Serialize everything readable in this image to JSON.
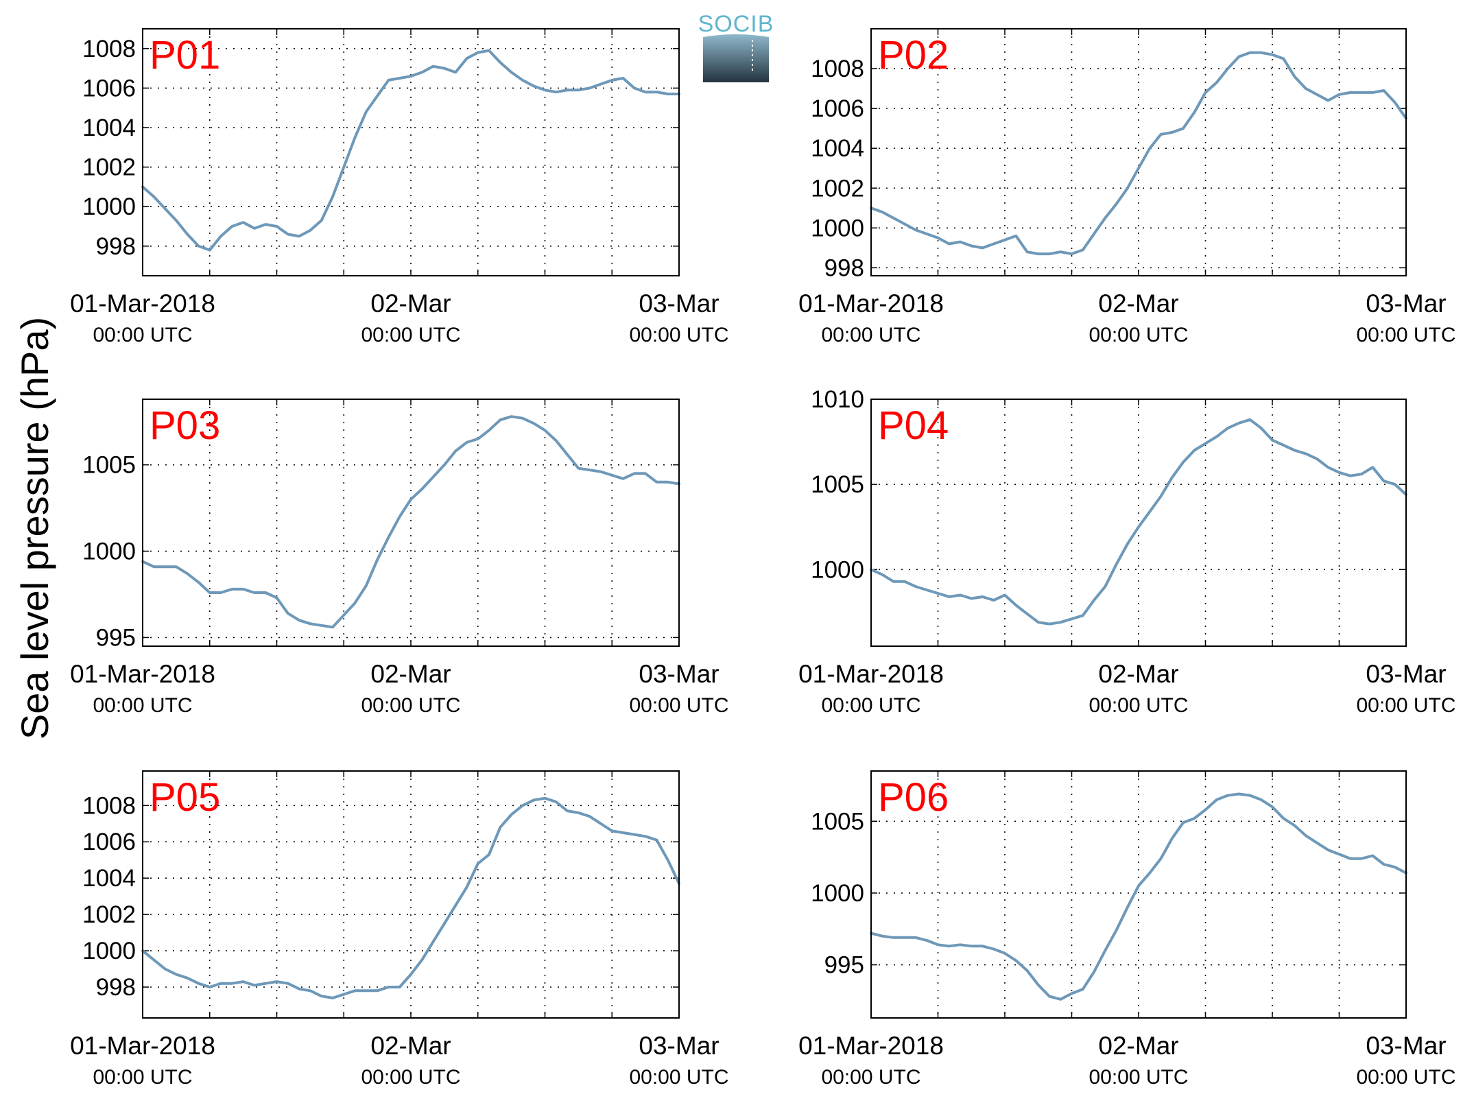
{
  "figure": {
    "ylabel": "Sea level pressure (hPa)",
    "logo_text": "SOCIB",
    "line_color": "#6e98b8",
    "label_color": "#ff0000"
  },
  "chart_data": [
    {
      "type": "line",
      "title": "P01",
      "ylabel": "Sea level pressure (hPa)",
      "xlim": [
        0,
        48
      ],
      "ylim": [
        996.5,
        1009
      ],
      "yticks": [
        998,
        1000,
        1002,
        1004,
        1006,
        1008
      ],
      "xticks": [
        {
          "x": 0,
          "date": "01-Mar-2018",
          "time": "00:00 UTC"
        },
        {
          "x": 24,
          "date": "02-Mar",
          "time": "00:00 UTC"
        },
        {
          "x": 48,
          "date": "03-Mar",
          "time": "00:00 UTC"
        }
      ],
      "grid": true,
      "x_unit": "hours since 01-Mar-2018 00:00 UTC",
      "series": [
        {
          "x": [
            0,
            1,
            2,
            3,
            4,
            5,
            6,
            7,
            8,
            9,
            10,
            11,
            12,
            13,
            14,
            15,
            16,
            17,
            18,
            19,
            20,
            21,
            22,
            23,
            24,
            25,
            26,
            27,
            28,
            29,
            30,
            31,
            32,
            33,
            34,
            35,
            36,
            37,
            38,
            39,
            40,
            41,
            42,
            43,
            44,
            45,
            46,
            47,
            48
          ],
          "y": [
            1001.0,
            1000.5,
            999.9,
            999.3,
            998.6,
            998.0,
            997.8,
            998.5,
            999.0,
            999.2,
            998.9,
            999.1,
            999.0,
            998.6,
            998.5,
            998.8,
            999.3,
            1000.5,
            1002.0,
            1003.5,
            1004.8,
            1005.6,
            1006.4,
            1006.5,
            1006.6,
            1006.8,
            1007.1,
            1007.0,
            1006.8,
            1007.5,
            1007.8,
            1007.9,
            1007.3,
            1006.8,
            1006.4,
            1006.1,
            1005.9,
            1005.8,
            1005.9,
            1005.9,
            1006.0,
            1006.2,
            1006.4,
            1006.5,
            1006.0,
            1005.8,
            1005.8,
            1005.7,
            1005.7
          ]
        }
      ]
    },
    {
      "type": "line",
      "title": "P02",
      "ylabel": "Sea level pressure (hPa)",
      "xlim": [
        0,
        48
      ],
      "ylim": [
        997.6,
        1010
      ],
      "yticks": [
        998,
        1000,
        1002,
        1004,
        1006,
        1008
      ],
      "xticks": [
        {
          "x": 0,
          "date": "01-Mar-2018",
          "time": "00:00 UTC"
        },
        {
          "x": 24,
          "date": "02-Mar",
          "time": "00:00 UTC"
        },
        {
          "x": 48,
          "date": "03-Mar",
          "time": "00:00 UTC"
        }
      ],
      "grid": true,
      "x_unit": "hours since 01-Mar-2018 00:00 UTC",
      "series": [
        {
          "x": [
            0,
            1,
            2,
            3,
            4,
            5,
            6,
            7,
            8,
            9,
            10,
            11,
            12,
            13,
            14,
            15,
            16,
            17,
            18,
            19,
            20,
            21,
            22,
            23,
            24,
            25,
            26,
            27,
            28,
            29,
            30,
            31,
            32,
            33,
            34,
            35,
            36,
            37,
            38,
            39,
            40,
            41,
            42,
            43,
            44,
            45,
            46,
            47,
            48
          ],
          "y": [
            1001.0,
            1000.8,
            1000.5,
            1000.2,
            999.9,
            999.7,
            999.5,
            999.2,
            999.3,
            999.1,
            999.0,
            999.2,
            999.4,
            999.6,
            998.8,
            998.7,
            998.7,
            998.8,
            998.7,
            998.9,
            999.7,
            1000.5,
            1001.2,
            1002.0,
            1003.0,
            1004.0,
            1004.7,
            1004.8,
            1005.0,
            1005.8,
            1006.8,
            1007.3,
            1008.0,
            1008.6,
            1008.8,
            1008.8,
            1008.7,
            1008.5,
            1007.6,
            1007.0,
            1006.7,
            1006.4,
            1006.7,
            1006.8,
            1006.8,
            1006.8,
            1006.9,
            1006.3,
            1005.5
          ]
        }
      ]
    },
    {
      "type": "line",
      "title": "P03",
      "ylabel": "Sea level pressure (hPa)",
      "xlim": [
        0,
        48
      ],
      "ylim": [
        994.5,
        1008.8
      ],
      "yticks": [
        995,
        1000,
        1005
      ],
      "xticks": [
        {
          "x": 0,
          "date": "01-Mar-2018",
          "time": "00:00 UTC"
        },
        {
          "x": 24,
          "date": "02-Mar",
          "time": "00:00 UTC"
        },
        {
          "x": 48,
          "date": "03-Mar",
          "time": "00:00 UTC"
        }
      ],
      "grid": true,
      "x_unit": "hours since 01-Mar-2018 00:00 UTC",
      "series": [
        {
          "x": [
            0,
            1,
            2,
            3,
            4,
            5,
            6,
            7,
            8,
            9,
            10,
            11,
            12,
            13,
            14,
            15,
            16,
            17,
            18,
            19,
            20,
            21,
            22,
            23,
            24,
            25,
            26,
            27,
            28,
            29,
            30,
            31,
            32,
            33,
            34,
            35,
            36,
            37,
            38,
            39,
            40,
            41,
            42,
            43,
            44,
            45,
            46,
            47,
            48
          ],
          "y": [
            999.4,
            999.1,
            999.1,
            999.1,
            998.7,
            998.2,
            997.6,
            997.6,
            997.8,
            997.8,
            997.6,
            997.6,
            997.3,
            996.4,
            996.0,
            995.8,
            995.7,
            995.6,
            996.3,
            997.0,
            998.0,
            999.5,
            1000.8,
            1002.0,
            1003.0,
            1003.6,
            1004.3,
            1005.0,
            1005.8,
            1006.3,
            1006.5,
            1007.0,
            1007.6,
            1007.8,
            1007.7,
            1007.4,
            1007.0,
            1006.4,
            1005.6,
            1004.8,
            1004.7,
            1004.6,
            1004.4,
            1004.2,
            1004.5,
            1004.5,
            1004.0,
            1004.0,
            1003.9
          ]
        }
      ]
    },
    {
      "type": "line",
      "title": "P04",
      "ylabel": "Sea level pressure (hPa)",
      "xlim": [
        0,
        48
      ],
      "ylim": [
        995.5,
        1010
      ],
      "yticks": [
        1000,
        1005,
        1010
      ],
      "xticks": [
        {
          "x": 0,
          "date": "01-Mar-2018",
          "time": "00:00 UTC"
        },
        {
          "x": 24,
          "date": "02-Mar",
          "time": "00:00 UTC"
        },
        {
          "x": 48,
          "date": "03-Mar",
          "time": "00:00 UTC"
        }
      ],
      "grid": true,
      "x_unit": "hours since 01-Mar-2018 00:00 UTC",
      "series": [
        {
          "x": [
            0,
            1,
            2,
            3,
            4,
            5,
            6,
            7,
            8,
            9,
            10,
            11,
            12,
            13,
            14,
            15,
            16,
            17,
            18,
            19,
            20,
            21,
            22,
            23,
            24,
            25,
            26,
            27,
            28,
            29,
            30,
            31,
            32,
            33,
            34,
            35,
            36,
            37,
            38,
            39,
            40,
            41,
            42,
            43,
            44,
            45,
            46,
            47,
            48
          ],
          "y": [
            1000.0,
            999.7,
            999.3,
            999.3,
            999.0,
            998.8,
            998.6,
            998.4,
            998.5,
            998.3,
            998.4,
            998.2,
            998.5,
            997.9,
            997.4,
            996.9,
            996.8,
            996.9,
            997.1,
            997.3,
            998.2,
            999.0,
            1000.3,
            1001.5,
            1002.5,
            1003.4,
            1004.3,
            1005.4,
            1006.3,
            1007.0,
            1007.4,
            1007.8,
            1008.3,
            1008.6,
            1008.8,
            1008.3,
            1007.6,
            1007.3,
            1007.0,
            1006.8,
            1006.5,
            1006.0,
            1005.7,
            1005.5,
            1005.6,
            1006.0,
            1005.2,
            1005.0,
            1004.4
          ]
        }
      ]
    },
    {
      "type": "line",
      "title": "P05",
      "ylabel": "Sea level pressure (hPa)",
      "xlim": [
        0,
        48
      ],
      "ylim": [
        996.3,
        1009.9
      ],
      "yticks": [
        998,
        1000,
        1002,
        1004,
        1006,
        1008
      ],
      "xticks": [
        {
          "x": 0,
          "date": "01-Mar-2018",
          "time": "00:00 UTC"
        },
        {
          "x": 24,
          "date": "02-Mar",
          "time": "00:00 UTC"
        },
        {
          "x": 48,
          "date": "03-Mar",
          "time": "00:00 UTC"
        }
      ],
      "grid": true,
      "x_unit": "hours since 01-Mar-2018 00:00 UTC",
      "series": [
        {
          "x": [
            0,
            1,
            2,
            3,
            4,
            5,
            6,
            7,
            8,
            9,
            10,
            11,
            12,
            13,
            14,
            15,
            16,
            17,
            18,
            19,
            20,
            21,
            22,
            23,
            24,
            25,
            26,
            27,
            28,
            29,
            30,
            31,
            32,
            33,
            34,
            35,
            36,
            37,
            38,
            39,
            40,
            41,
            42,
            43,
            44,
            45,
            46,
            47,
            48
          ],
          "y": [
            1000.0,
            999.5,
            999.0,
            998.7,
            998.5,
            998.2,
            998.0,
            998.2,
            998.2,
            998.3,
            998.1,
            998.2,
            998.3,
            998.2,
            997.9,
            997.8,
            997.5,
            997.4,
            997.6,
            997.8,
            997.8,
            997.8,
            998.0,
            998.0,
            998.7,
            999.5,
            1000.5,
            1001.5,
            1002.5,
            1003.5,
            1004.8,
            1005.3,
            1006.8,
            1007.5,
            1008.0,
            1008.3,
            1008.4,
            1008.2,
            1007.7,
            1007.6,
            1007.4,
            1007.0,
            1006.6,
            1006.5,
            1006.4,
            1006.3,
            1006.1,
            1005.0,
            1003.7
          ]
        }
      ]
    },
    {
      "type": "line",
      "title": "P06",
      "ylabel": "Sea level pressure (hPa)",
      "xlim": [
        0,
        48
      ],
      "ylim": [
        991.3,
        1008.5
      ],
      "yticks": [
        995,
        1000,
        1005
      ],
      "xticks": [
        {
          "x": 0,
          "date": "01-Mar-2018",
          "time": "00:00 UTC"
        },
        {
          "x": 24,
          "date": "02-Mar",
          "time": "00:00 UTC"
        },
        {
          "x": 48,
          "date": "03-Mar",
          "time": "00:00 UTC"
        }
      ],
      "grid": true,
      "x_unit": "hours since 01-Mar-2018 00:00 UTC",
      "series": [
        {
          "x": [
            0,
            1,
            2,
            3,
            4,
            5,
            6,
            7,
            8,
            9,
            10,
            11,
            12,
            13,
            14,
            15,
            16,
            17,
            18,
            19,
            20,
            21,
            22,
            23,
            24,
            25,
            26,
            27,
            28,
            29,
            30,
            31,
            32,
            33,
            34,
            35,
            36,
            37,
            38,
            39,
            40,
            41,
            42,
            43,
            44,
            45,
            46,
            47,
            48
          ],
          "y": [
            997.2,
            997.0,
            996.9,
            996.9,
            996.9,
            996.7,
            996.4,
            996.3,
            996.4,
            996.3,
            996.3,
            996.1,
            995.8,
            995.3,
            994.6,
            993.6,
            992.8,
            992.6,
            993.0,
            993.3,
            994.5,
            996.0,
            997.4,
            999.0,
            1000.5,
            1001.4,
            1002.4,
            1003.8,
            1004.9,
            1005.2,
            1005.8,
            1006.5,
            1006.8,
            1006.9,
            1006.8,
            1006.5,
            1006.0,
            1005.2,
            1004.7,
            1004.0,
            1003.5,
            1003.0,
            1002.7,
            1002.4,
            1002.4,
            1002.6,
            1002.0,
            1001.8,
            1001.4
          ]
        }
      ]
    }
  ]
}
